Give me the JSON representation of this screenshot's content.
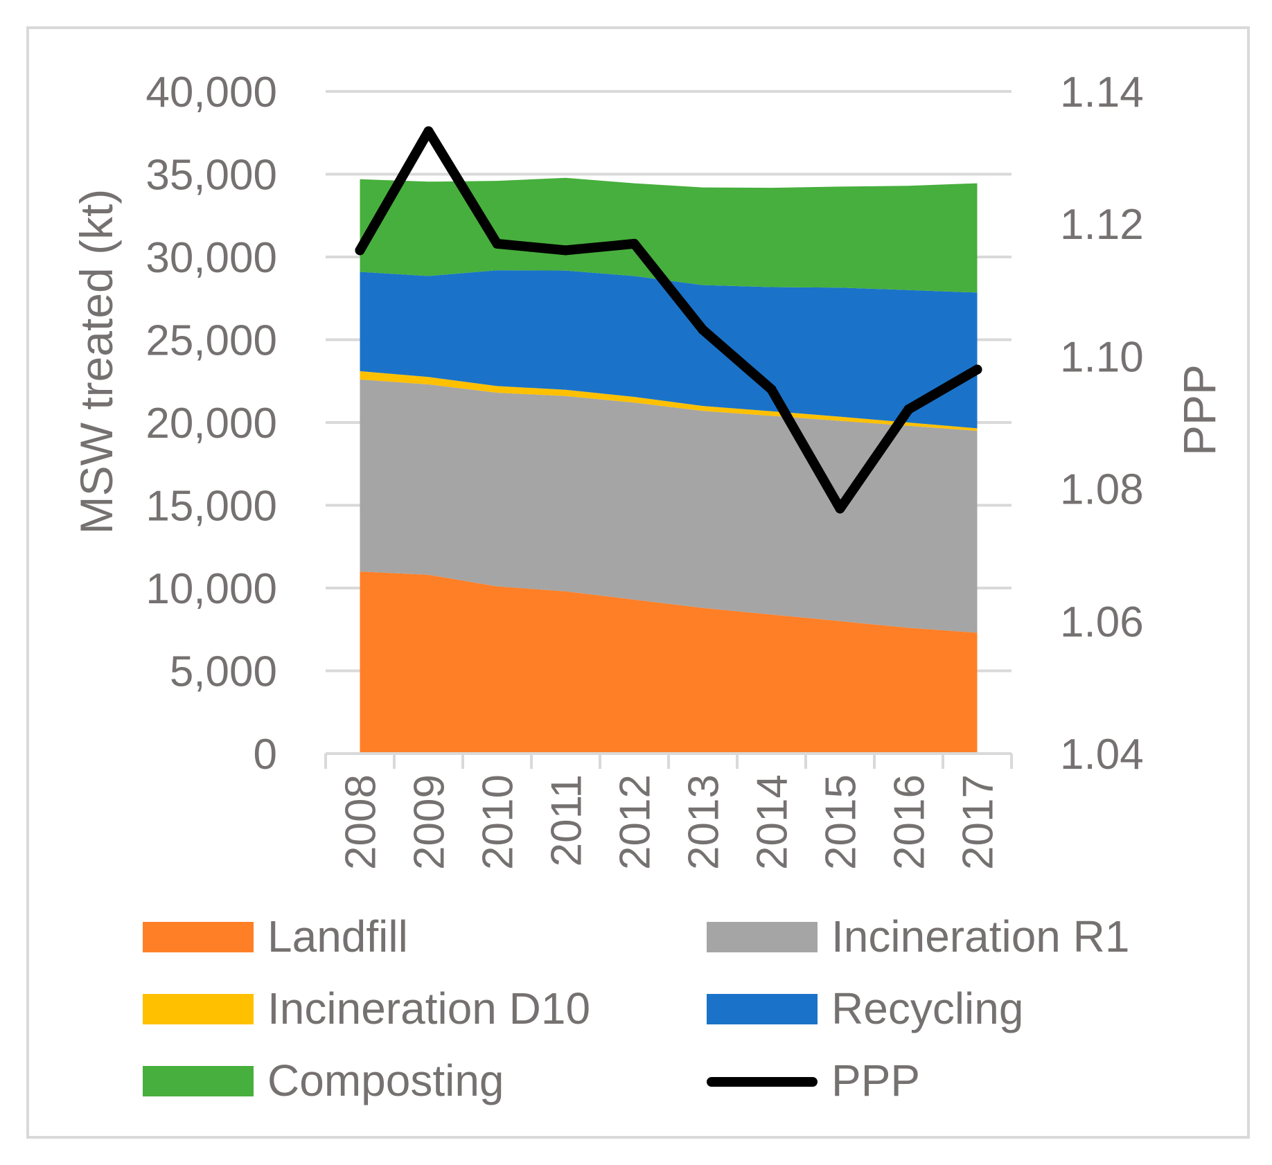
{
  "chart_data": {
    "type": "area",
    "stacked": true,
    "title": "",
    "categories": [
      "2008",
      "2009",
      "2010",
      "2011",
      "2012",
      "2013",
      "2014",
      "2015",
      "2016",
      "2017"
    ],
    "series": [
      {
        "name": "Landfill",
        "color": "#FF7F27",
        "values": [
          11000,
          10800,
          10100,
          9800,
          9300,
          8800,
          8400,
          8000,
          7600,
          7300
        ]
      },
      {
        "name": "Incineration R1",
        "color": "#A5A5A5",
        "values": [
          11600,
          11500,
          11700,
          11800,
          11900,
          11900,
          12000,
          12100,
          12200,
          12200
        ]
      },
      {
        "name": "Incineration D10",
        "color": "#FFC000",
        "values": [
          500,
          450,
          400,
          380,
          350,
          300,
          280,
          250,
          200,
          150
        ]
      },
      {
        "name": "Recycling",
        "color": "#1A73C8",
        "values": [
          6000,
          6100,
          7000,
          7200,
          7300,
          7300,
          7500,
          7800,
          8000,
          8200
        ]
      },
      {
        "name": "Composting",
        "color": "#47AF3D",
        "values": [
          5600,
          5700,
          5400,
          5600,
          5600,
          5900,
          6000,
          6100,
          6300,
          6600
        ]
      }
    ],
    "line_series": {
      "name": "PPP",
      "color": "#000000",
      "axis": "right",
      "values": [
        1.116,
        1.134,
        1.117,
        1.116,
        1.117,
        1.104,
        1.095,
        1.077,
        1.092,
        1.098
      ]
    },
    "ylabel": "MSW treated (kt)",
    "ylabel_right": "PPP",
    "xlabel": "",
    "ylim": [
      0,
      40000
    ],
    "ylim_right": [
      1.04,
      1.14
    ],
    "yticks": [
      "0",
      "5,000",
      "10,000",
      "15,000",
      "20,000",
      "25,000",
      "30,000",
      "35,000",
      "40,000"
    ],
    "yticks_right": [
      "1.04",
      "1.06",
      "1.08",
      "1.10",
      "1.12",
      "1.14"
    ],
    "grid": true,
    "legend_position": "bottom"
  },
  "legend": {
    "items": [
      {
        "label": "Landfill",
        "color": "#FF7F27",
        "kind": "area"
      },
      {
        "label": "Incineration R1",
        "color": "#A5A5A5",
        "kind": "area"
      },
      {
        "label": "Incineration D10",
        "color": "#FFC000",
        "kind": "area"
      },
      {
        "label": "Recycling",
        "color": "#1A73C8",
        "kind": "area"
      },
      {
        "label": "Composting",
        "color": "#47AF3D",
        "kind": "area"
      },
      {
        "label": "PPP",
        "color": "#000000",
        "kind": "line"
      }
    ]
  }
}
